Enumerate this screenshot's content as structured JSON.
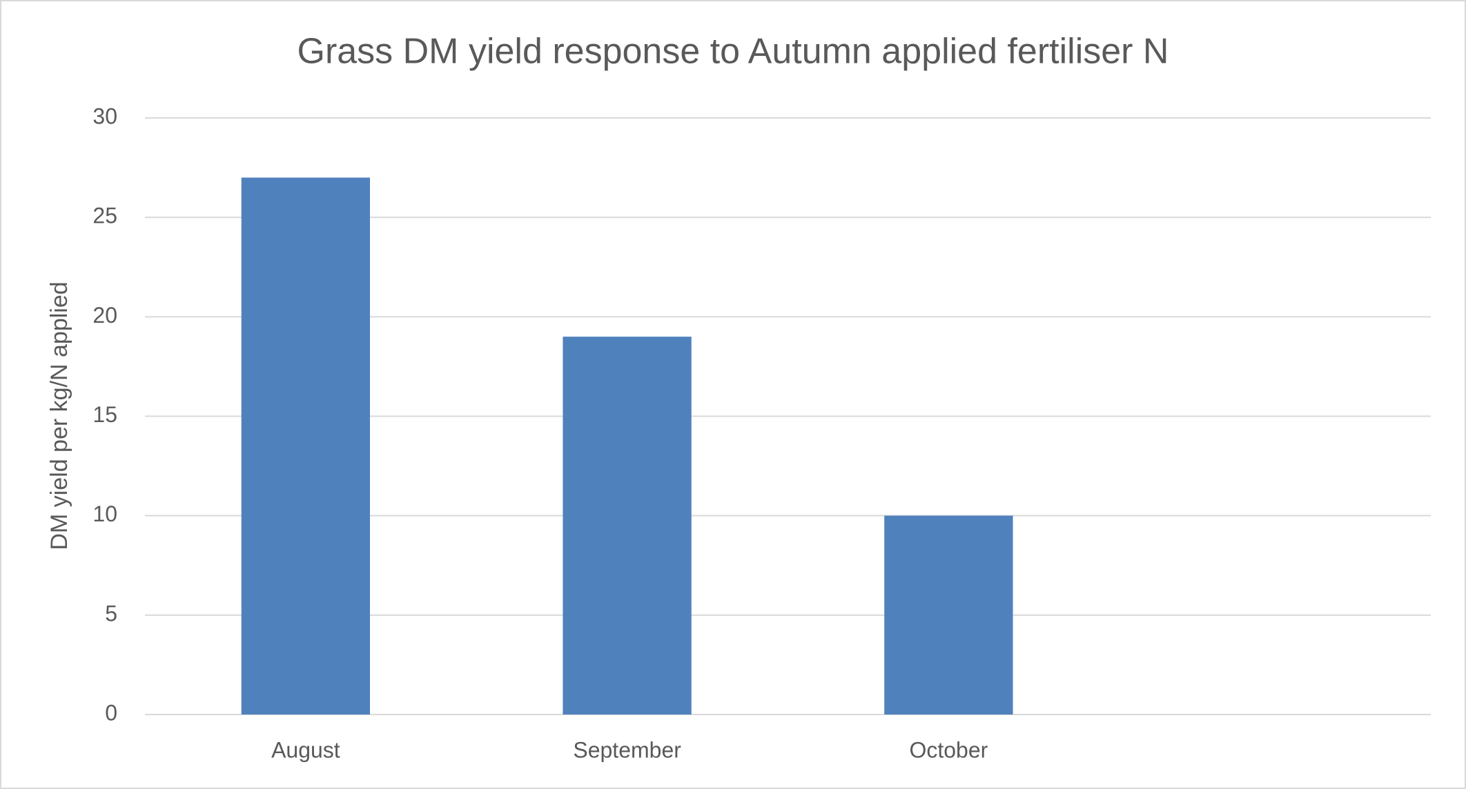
{
  "chart_data": {
    "type": "bar",
    "title": "Grass DM yield response to Autumn applied fertiliser N",
    "y_label": "DM yield per kg/N applied",
    "categories": [
      "August",
      "September",
      "October",
      null
    ],
    "values": [
      27,
      19,
      10,
      null
    ],
    "color": "#4f81bd",
    "ylim": [
      0,
      30
    ],
    "yticks": [
      0,
      5,
      10,
      15,
      20,
      25,
      30
    ],
    "grid": true
  }
}
